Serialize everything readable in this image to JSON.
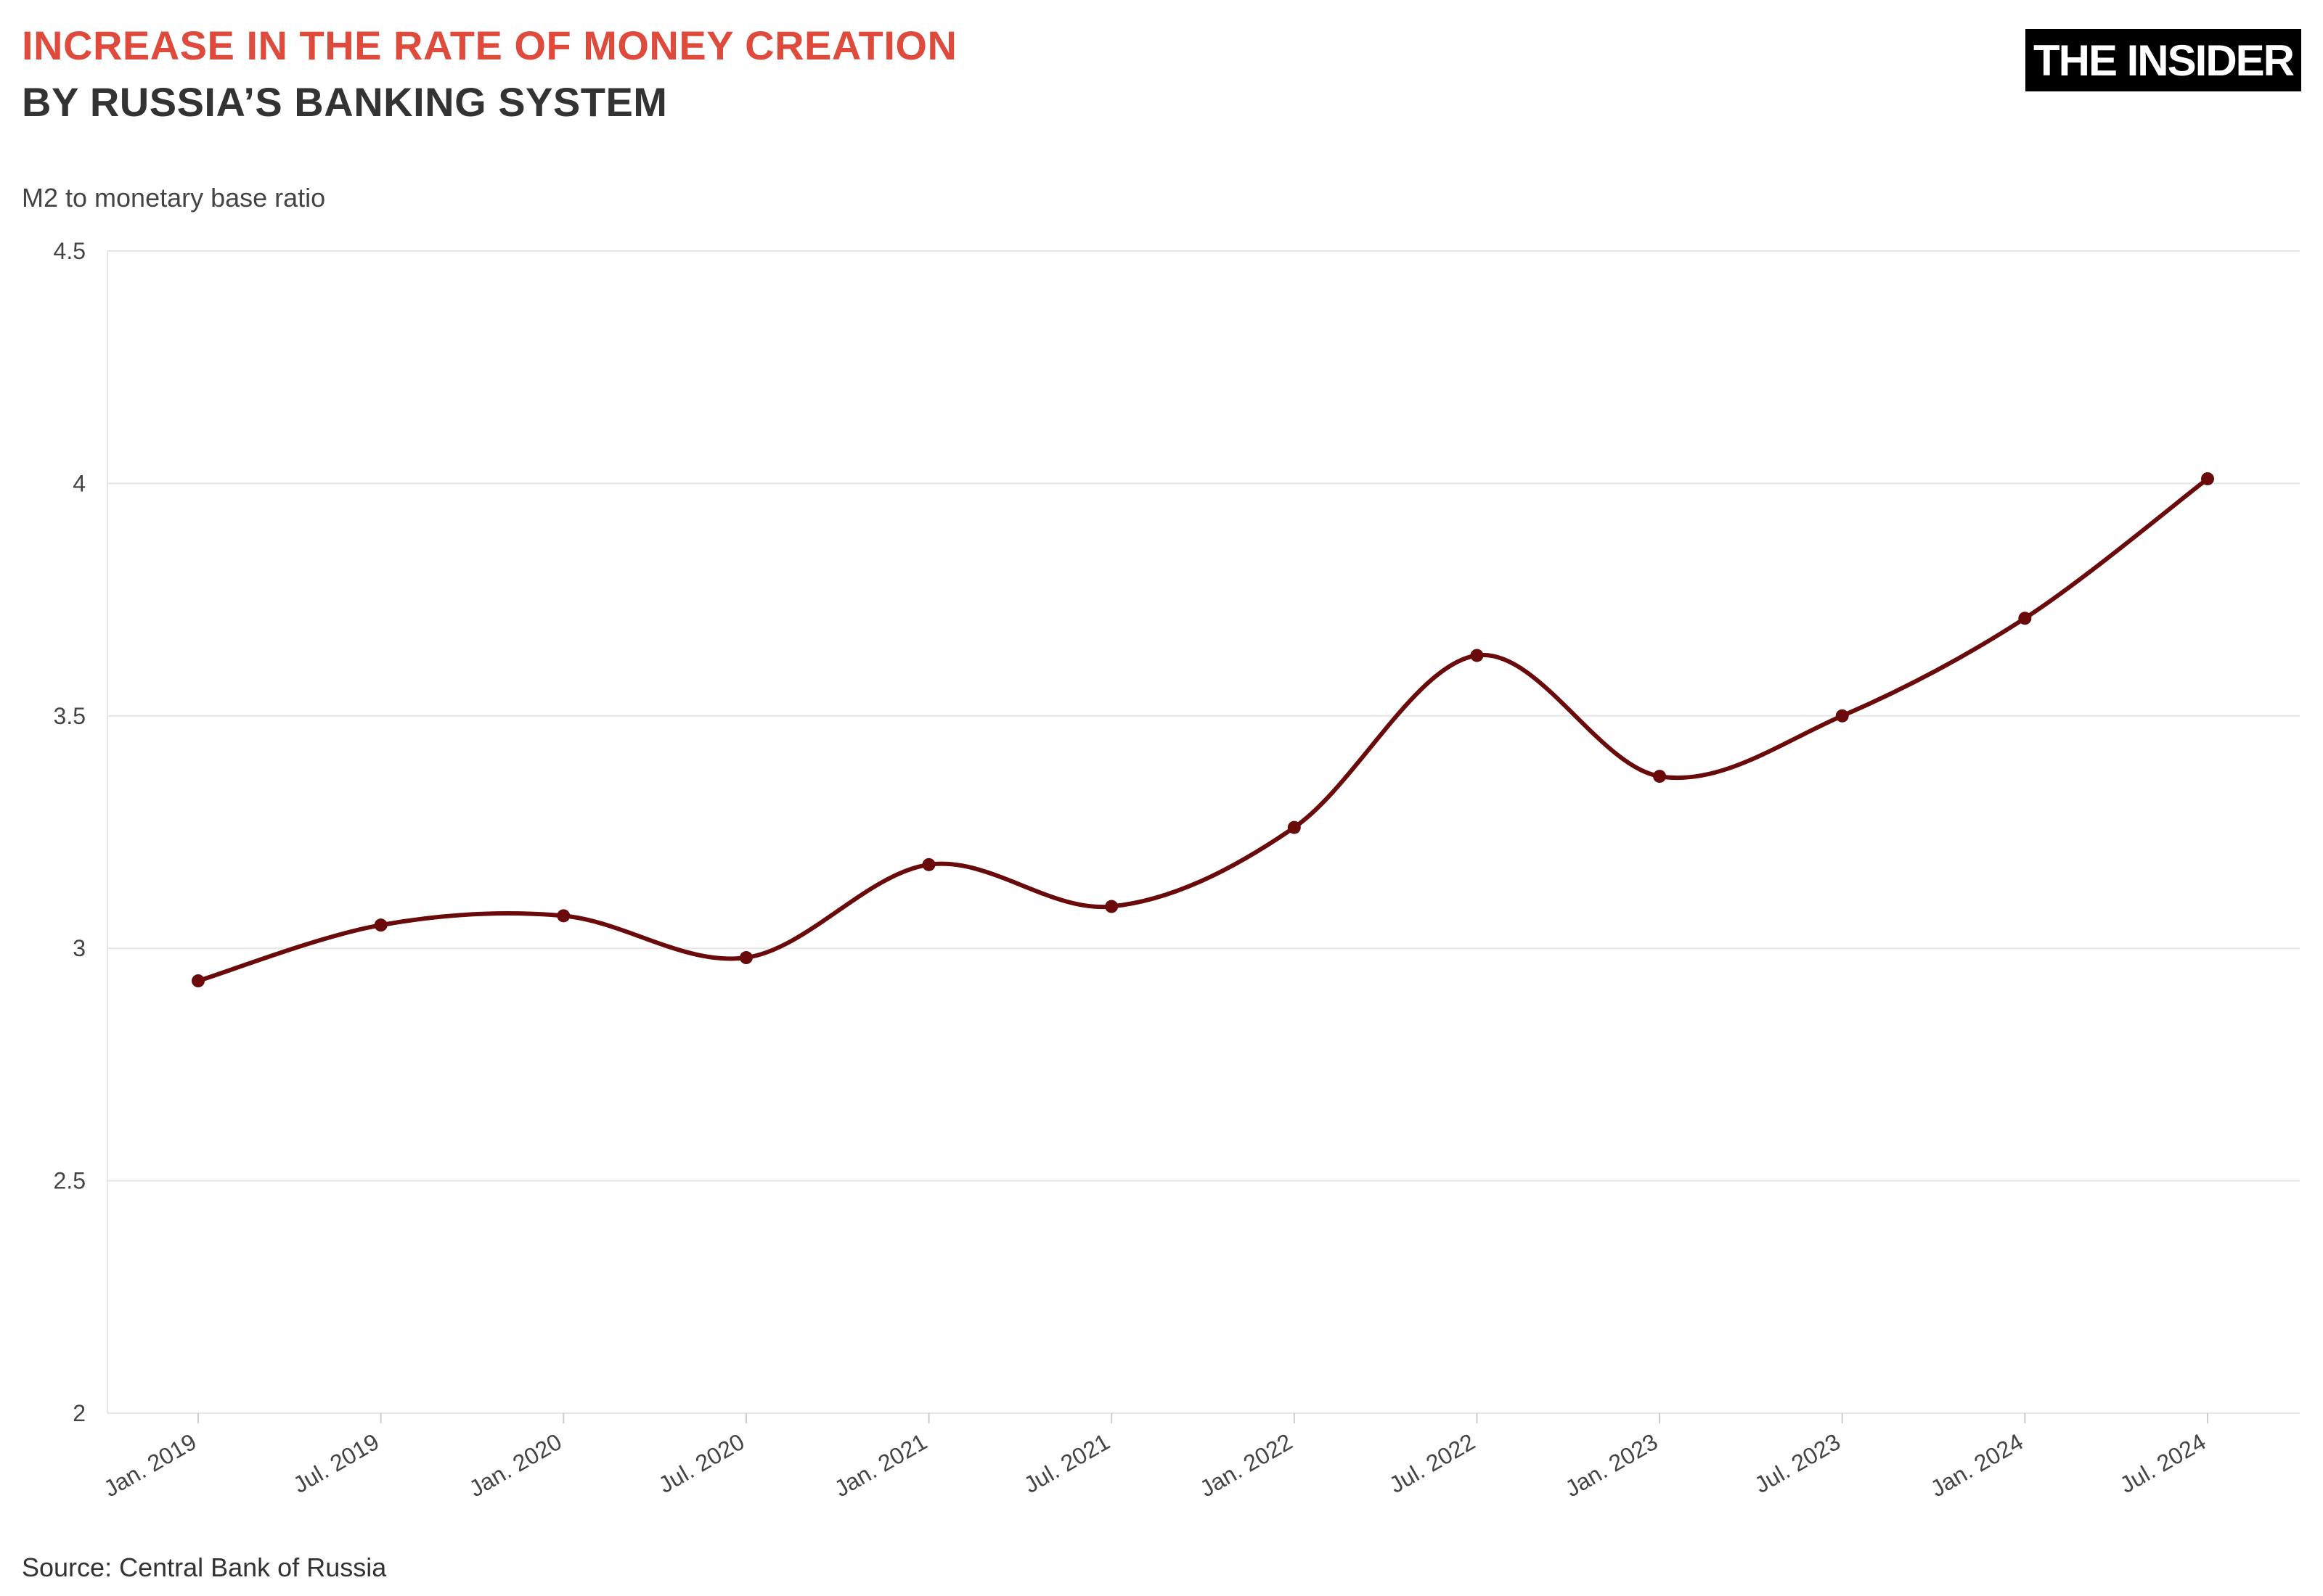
{
  "header": {
    "title_line1": "INCREASE IN THE RATE OF MONEY CREATION",
    "title_line2": "BY RUSSIA’S BANKING SYSTEM",
    "logo_text": "THE INSIDER"
  },
  "footer": {
    "source": "Source: Central Bank of Russia"
  },
  "chart_data": {
    "type": "line",
    "title": "INCREASE IN THE RATE OF MONEY CREATION BY RUSSIA’S BANKING SYSTEM",
    "ylabel": "M2 to monetary base ratio",
    "xlabel": "",
    "ylim": [
      2,
      4.5
    ],
    "yticks": [
      "2",
      "2.5",
      "3",
      "3.5",
      "4",
      "4.5"
    ],
    "ytick_values": [
      2,
      2.5,
      3,
      3.5,
      4,
      4.5
    ],
    "categories": [
      "Jan. 2019",
      "Jul. 2019",
      "Jan. 2020",
      "Jul. 2020",
      "Jan. 2021",
      "Jul. 2021",
      "Jan. 2022",
      "Jul. 2022",
      "Jan. 2023",
      "Jul. 2023",
      "Jan. 2024",
      "Jul. 2024"
    ],
    "series": [
      {
        "values": [
          2.93,
          3.05,
          3.07,
          2.98,
          3.18,
          3.09,
          3.26,
          3.63,
          3.37,
          3.5,
          3.71,
          4.01
        ],
        "color": "#6b0a0a"
      }
    ],
    "grid": true,
    "smooth": true,
    "markers": true
  }
}
